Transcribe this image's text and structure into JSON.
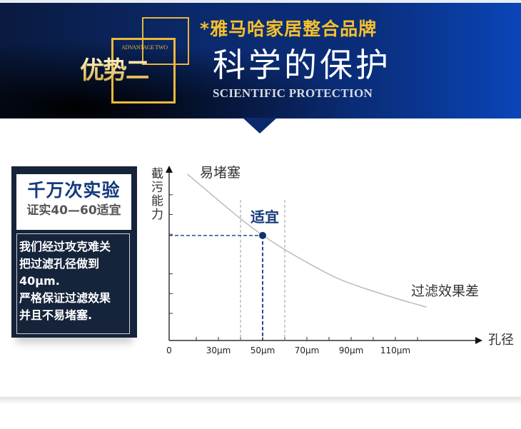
{
  "banner": {
    "badge_en": "ADVANTAGE TWO",
    "badge_cn": "优势二",
    "brand_line": "*雅马哈家居整合品牌",
    "title": "科学的保护",
    "subtitle": "SCIENTIFIC PROTECTION"
  },
  "card": {
    "headline": "千万次实验",
    "subheadline": "证实40—60适宜",
    "body_lines": [
      "我们经过攻克难关",
      "把过滤孔径做到",
      "40µm.",
      "严格保证过滤效果",
      "并且不易堵塞."
    ]
  },
  "colors": {
    "banner_blue": "#0b2a6e",
    "gold": "#f5c02c",
    "card_navy": "#15243a",
    "accent_blue": "#133a7c"
  },
  "chart_data": {
    "type": "line",
    "ylabel": "截污能力",
    "xlabel": "孔径",
    "x_tick_labels": [
      "0",
      "30µm",
      "50µm",
      "70µm",
      "90µm",
      "110µm"
    ],
    "x_tick_values": [
      30,
      50,
      70,
      90,
      110
    ],
    "x_minor_ticks": [
      20,
      30,
      40,
      50,
      60,
      70,
      80,
      90,
      100,
      110,
      120
    ],
    "y_ticks": [
      1,
      2,
      3,
      5,
      6,
      7
    ],
    "curve": {
      "x": [
        16,
        40,
        50,
        60,
        80,
        90,
        110,
        124
      ],
      "y": [
        8.04,
        5.77,
        4.94,
        4.21,
        2.95,
        2.48,
        1.76,
        1.32
      ]
    },
    "range_lines": [
      40,
      60
    ],
    "optimal_point": {
      "x": 50,
      "y": 4.94,
      "label": "适宜"
    },
    "annotations": {
      "top": "易堵塞",
      "bottom": "过滤效果差"
    },
    "grid": false
  }
}
